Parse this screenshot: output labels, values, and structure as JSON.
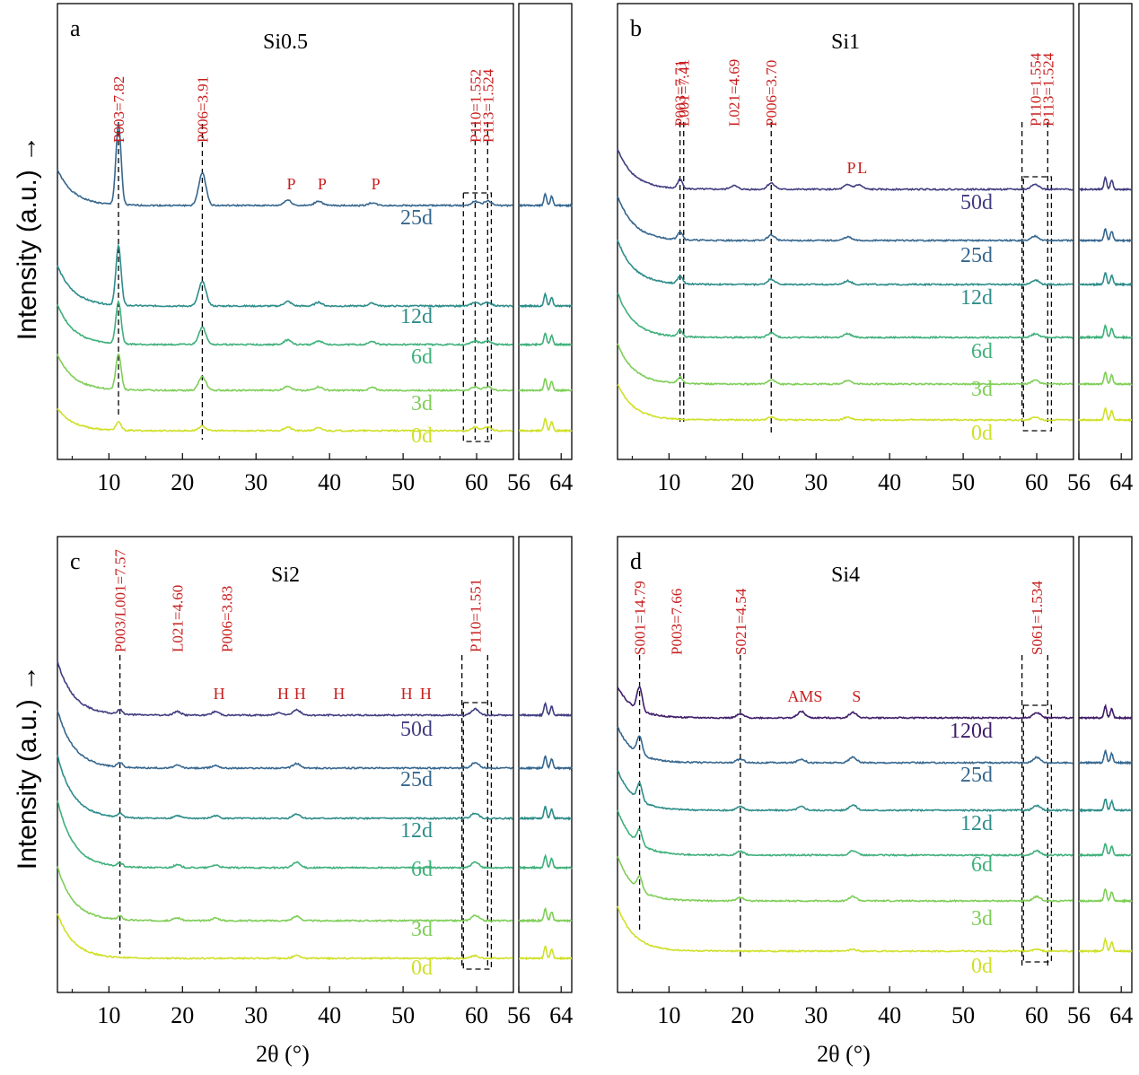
{
  "figure": {
    "y_axis_label": "Intensity (a.u.) →",
    "x_axis_label": "2θ (°)"
  },
  "colors": {
    "0d": "#cfe02a",
    "3d": "#7fce58",
    "6d": "#3fb07a",
    "12d": "#2d8d8a",
    "25d": "#36678f",
    "50d": "#403d80",
    "120d": "#3f1c68",
    "annotation": "#c81e1e",
    "axis": "#000000"
  },
  "chart_data": [
    {
      "type": "line",
      "panel_letter": "a",
      "title": "Si0.5",
      "xlabel": "",
      "ylabel": "Intensity (a.u.) →",
      "xlim": [
        3,
        65
      ],
      "xlim_inset": [
        56,
        66
      ],
      "x_ticks": [
        10,
        20,
        30,
        40,
        50,
        60
      ],
      "x_ticks_inset": [
        56,
        64
      ],
      "grid": false,
      "series": [
        {
          "name": "25d",
          "color": "#36678f",
          "peaks": [
            [
              11.3,
              9.0
            ],
            [
              22.7,
              3.6
            ],
            [
              34.3,
              0.6
            ],
            [
              38.5,
              0.5
            ],
            [
              45.8,
              0.3
            ],
            [
              59.8,
              0.45
            ],
            [
              61.5,
              0.5
            ]
          ],
          "decay": 4.0
        },
        {
          "name": "12d",
          "color": "#2d8d8a",
          "peaks": [
            [
              11.3,
              6.6
            ],
            [
              22.7,
              2.7
            ],
            [
              34.3,
              0.5
            ],
            [
              38.5,
              0.4
            ],
            [
              45.8,
              0.3
            ],
            [
              59.8,
              0.4
            ],
            [
              61.5,
              0.4
            ]
          ],
          "decay": 4.5
        },
        {
          "name": "6d",
          "color": "#3fb07a",
          "peaks": [
            [
              11.3,
              4.7
            ],
            [
              22.7,
              1.9
            ],
            [
              34.3,
              0.5
            ],
            [
              38.5,
              0.4
            ],
            [
              45.8,
              0.3
            ],
            [
              59.8,
              0.4
            ],
            [
              61.5,
              0.4
            ]
          ],
          "decay": 4.5
        },
        {
          "name": "3d",
          "color": "#7fce58",
          "peaks": [
            [
              11.3,
              4.0
            ],
            [
              22.7,
              1.5
            ],
            [
              34.3,
              0.5
            ],
            [
              38.5,
              0.4
            ],
            [
              45.8,
              0.3
            ],
            [
              59.8,
              0.4
            ],
            [
              61.5,
              0.4
            ]
          ],
          "decay": 4.0
        },
        {
          "name": "0d",
          "color": "#cfe02a",
          "peaks": [
            [
              11.3,
              0.9
            ],
            [
              22.7,
              0.5
            ],
            [
              34.3,
              0.4
            ],
            [
              38.5,
              0.3
            ],
            [
              59.8,
              0.4
            ],
            [
              61.5,
              0.4
            ]
          ],
          "decay": 2.5
        }
      ],
      "annotations": [
        {
          "text": "P003=7.82",
          "x": 11.3
        },
        {
          "text": "P006=3.91",
          "x": 22.7
        },
        {
          "text": "P",
          "x": 34.3
        },
        {
          "text": "P",
          "x": 38.5
        },
        {
          "text": "P",
          "x": 45.8
        },
        {
          "text": "P110=1.552",
          "x": 59.8
        },
        {
          "text": "P113=1.524",
          "x": 61.5
        }
      ],
      "dashed_lines_x": [
        11.3,
        22.7,
        59.8,
        61.5
      ]
    },
    {
      "type": "line",
      "panel_letter": "b",
      "title": "Si1",
      "xlabel": "",
      "ylabel": "",
      "xlim": [
        3,
        65
      ],
      "xlim_inset": [
        56,
        66
      ],
      "x_ticks": [
        10,
        20,
        30,
        40,
        50,
        60
      ],
      "x_ticks_inset": [
        56,
        64
      ],
      "grid": false,
      "series": [
        {
          "name": "50d",
          "color": "#403d80",
          "peaks": [
            [
              11.5,
              1.0
            ],
            [
              18.8,
              0.4
            ],
            [
              23.9,
              0.7
            ],
            [
              34.3,
              0.5
            ],
            [
              35.8,
              0.5
            ],
            [
              59.8,
              0.6
            ]
          ],
          "decay": 4.5
        },
        {
          "name": "25d",
          "color": "#36678f",
          "peaks": [
            [
              11.5,
              0.9
            ],
            [
              23.9,
              0.6
            ],
            [
              34.3,
              0.4
            ],
            [
              59.8,
              0.5
            ]
          ],
          "decay": 5.0
        },
        {
          "name": "12d",
          "color": "#2d8d8a",
          "peaks": [
            [
              11.5,
              0.8
            ],
            [
              23.9,
              0.6
            ],
            [
              34.3,
              0.4
            ],
            [
              59.8,
              0.5
            ]
          ],
          "decay": 5.0
        },
        {
          "name": "6d",
          "color": "#3fb07a",
          "peaks": [
            [
              11.5,
              0.7
            ],
            [
              23.9,
              0.5
            ],
            [
              34.3,
              0.4
            ],
            [
              59.8,
              0.4
            ]
          ],
          "decay": 5.0
        },
        {
          "name": "3d",
          "color": "#7fce58",
          "peaks": [
            [
              11.5,
              0.7
            ],
            [
              23.9,
              0.5
            ],
            [
              34.3,
              0.4
            ],
            [
              59.8,
              0.4
            ]
          ],
          "decay": 4.5
        },
        {
          "name": "0d",
          "color": "#cfe02a",
          "peaks": [
            [
              23.9,
              0.3
            ],
            [
              34.3,
              0.3
            ],
            [
              59.8,
              0.3
            ]
          ],
          "decay": 4.0
        }
      ],
      "annotations": [
        {
          "text": "P003=7.71",
          "x": 11.5
        },
        {
          "text": "L001=7.41",
          "x": 12.0
        },
        {
          "text": "L021=4.69",
          "x": 18.8
        },
        {
          "text": "P006=3.70",
          "x": 23.9
        },
        {
          "text": "P",
          "x": 34.3
        },
        {
          "text": "L",
          "x": 35.8
        },
        {
          "text": "P110=1.554",
          "x": 59.8
        },
        {
          "text": "P113=1.524",
          "x": 61.5
        }
      ],
      "dashed_lines_x": [
        11.5,
        12.0,
        23.9,
        58.0,
        61.5
      ]
    },
    {
      "type": "line",
      "panel_letter": "c",
      "title": "Si2",
      "xlabel": "2θ (°)",
      "ylabel": "Intensity (a.u.) →",
      "xlim": [
        3,
        65
      ],
      "xlim_inset": [
        56,
        66
      ],
      "x_ticks": [
        10,
        20,
        30,
        40,
        50,
        60
      ],
      "x_ticks_inset": [
        56,
        64
      ],
      "grid": false,
      "series": [
        {
          "name": "50d",
          "color": "#403d80",
          "peaks": [
            [
              11.5,
              0.5
            ],
            [
              19.3,
              0.4
            ],
            [
              24.5,
              0.4
            ],
            [
              33.2,
              0.3
            ],
            [
              35.5,
              0.6
            ],
            [
              59.8,
              0.7
            ]
          ],
          "decay": 6.0
        },
        {
          "name": "25d",
          "color": "#36678f",
          "peaks": [
            [
              11.5,
              0.5
            ],
            [
              19.3,
              0.3
            ],
            [
              24.5,
              0.3
            ],
            [
              35.5,
              0.5
            ],
            [
              59.8,
              0.6
            ]
          ],
          "decay": 6.5
        },
        {
          "name": "12d",
          "color": "#2d8d8a",
          "peaks": [
            [
              11.5,
              0.4
            ],
            [
              19.3,
              0.3
            ],
            [
              24.5,
              0.3
            ],
            [
              35.5,
              0.5
            ],
            [
              59.8,
              0.6
            ]
          ],
          "decay": 7.0
        },
        {
          "name": "6d",
          "color": "#3fb07a",
          "peaks": [
            [
              11.5,
              0.4
            ],
            [
              19.3,
              0.3
            ],
            [
              24.5,
              0.3
            ],
            [
              35.5,
              0.6
            ],
            [
              59.8,
              0.6
            ]
          ],
          "decay": 7.5
        },
        {
          "name": "3d",
          "color": "#7fce58",
          "peaks": [
            [
              11.5,
              0.4
            ],
            [
              19.3,
              0.3
            ],
            [
              24.5,
              0.3
            ],
            [
              35.5,
              0.5
            ],
            [
              59.8,
              0.6
            ]
          ],
          "decay": 6.0
        },
        {
          "name": "0d",
          "color": "#cfe02a",
          "peaks": [
            [
              35.5,
              0.3
            ],
            [
              59.8,
              0.3
            ]
          ],
          "decay": 5.0
        }
      ],
      "annotations": [
        {
          "text": "P003/L001=7.57",
          "x": 11.5
        },
        {
          "text": "L021=4.60",
          "x": 19.3
        },
        {
          "text": "H",
          "x": 24.5
        },
        {
          "text": "P006=3.83",
          "x": 26.0
        },
        {
          "text": "H",
          "x": 33.2
        },
        {
          "text": "H",
          "x": 35.5
        },
        {
          "text": "H",
          "x": 40.8
        },
        {
          "text": "H",
          "x": 50.0
        },
        {
          "text": "H",
          "x": 52.6
        },
        {
          "text": "P110=1.551",
          "x": 59.8
        }
      ],
      "dashed_lines_x": [
        11.5,
        58.0,
        61.5
      ]
    },
    {
      "type": "line",
      "panel_letter": "d",
      "title": "Si4",
      "xlabel": "2θ (°)",
      "ylabel": "",
      "xlim": [
        3,
        65
      ],
      "xlim_inset": [
        56,
        66
      ],
      "x_ticks": [
        10,
        20,
        30,
        40,
        50,
        60
      ],
      "x_ticks_inset": [
        56,
        64
      ],
      "grid": false,
      "series": [
        {
          "name": "120d",
          "color": "#3f1c68",
          "peaks": [
            [
              6.0,
              2.6
            ],
            [
              19.7,
              0.4
            ],
            [
              28.0,
              0.7
            ],
            [
              35.0,
              0.6
            ],
            [
              60.0,
              0.6
            ]
          ],
          "decay": 3.5
        },
        {
          "name": "25d",
          "color": "#36678f",
          "peaks": [
            [
              6.0,
              2.0
            ],
            [
              19.7,
              0.4
            ],
            [
              28.0,
              0.4
            ],
            [
              35.0,
              0.6
            ],
            [
              60.0,
              0.6
            ]
          ],
          "decay": 4.0
        },
        {
          "name": "12d",
          "color": "#2d8d8a",
          "peaks": [
            [
              6.0,
              1.9
            ],
            [
              19.7,
              0.4
            ],
            [
              28.0,
              0.4
            ],
            [
              35.0,
              0.6
            ],
            [
              60.0,
              0.5
            ]
          ],
          "decay": 4.5
        },
        {
          "name": "6d",
          "color": "#3fb07a",
          "peaks": [
            [
              6.0,
              1.6
            ],
            [
              19.7,
              0.4
            ],
            [
              35.0,
              0.5
            ],
            [
              60.0,
              0.5
            ]
          ],
          "decay": 5.0
        },
        {
          "name": "3d",
          "color": "#7fce58",
          "peaks": [
            [
              6.0,
              1.5
            ],
            [
              19.7,
              0.4
            ],
            [
              35.0,
              0.5
            ],
            [
              60.0,
              0.5
            ]
          ],
          "decay": 5.0
        },
        {
          "name": "0d",
          "color": "#cfe02a",
          "peaks": [
            [
              35.0,
              0.2
            ],
            [
              60.0,
              0.2
            ]
          ],
          "decay": 5.0
        }
      ],
      "annotations": [
        {
          "text": "S001=14.79",
          "x": 6.0
        },
        {
          "text": "S021=4.54",
          "x": 19.7
        },
        {
          "text": "AMS",
          "x": 28.0
        },
        {
          "text": "S",
          "x": 35.0
        },
        {
          "text": "S061=1.534",
          "x": 60.0
        },
        {
          "text": "P003=7.66",
          "x": 11.0
        }
      ],
      "dashed_lines_x": [
        6.0,
        19.7,
        58.0,
        61.5
      ]
    }
  ]
}
